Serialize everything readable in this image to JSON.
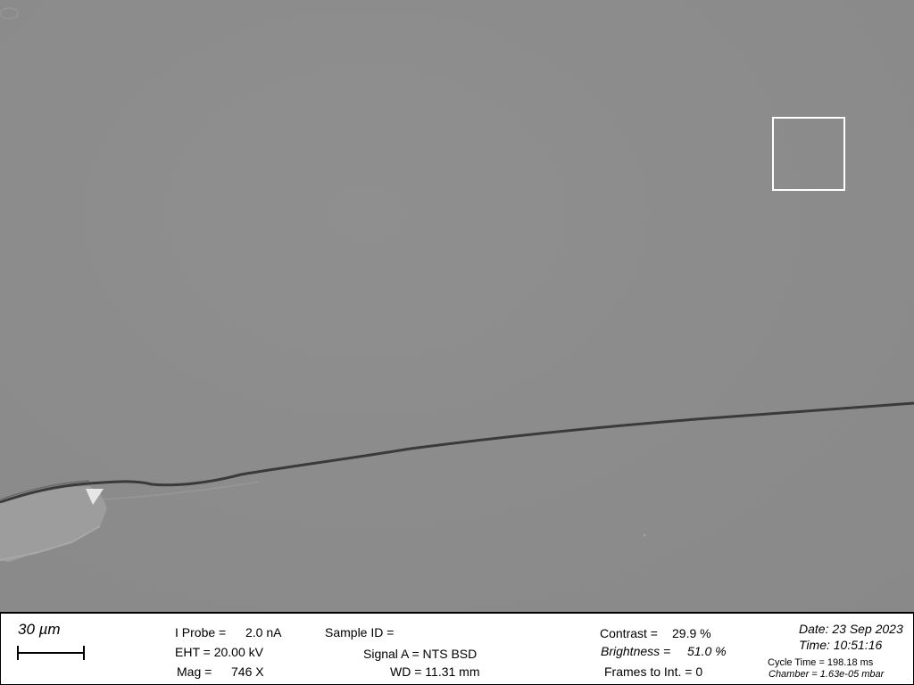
{
  "scale": {
    "label": "30 µm"
  },
  "probe": {
    "label": "I Probe =",
    "value": "2.0 nA"
  },
  "eht": {
    "text": "EHT = 20.00 kV"
  },
  "mag": {
    "label": "Mag =",
    "value": "746 X"
  },
  "sample": {
    "text": "Sample ID ="
  },
  "signal": {
    "text": "Signal A = NTS BSD"
  },
  "wd": {
    "text": "WD = 11.31 mm"
  },
  "contrast": {
    "label": "Contrast =",
    "value": "29.9 %"
  },
  "brightness": {
    "label": "Brightness =",
    "value": "51.0 %"
  },
  "frames": {
    "text": "Frames to Int. = 0"
  },
  "date": {
    "text": "Date: 23 Sep 2023"
  },
  "time": {
    "text": "Time: 10:51:16"
  },
  "cycle": {
    "text": "Cycle Time = 198.18 ms"
  },
  "chamber": {
    "text": "Chamber = 1.63e-05 mbar"
  },
  "colors": {
    "background": "#8c8c8c",
    "crack": "#3a3a3a",
    "roi": "#ffffff",
    "panel": "#ffffff"
  }
}
